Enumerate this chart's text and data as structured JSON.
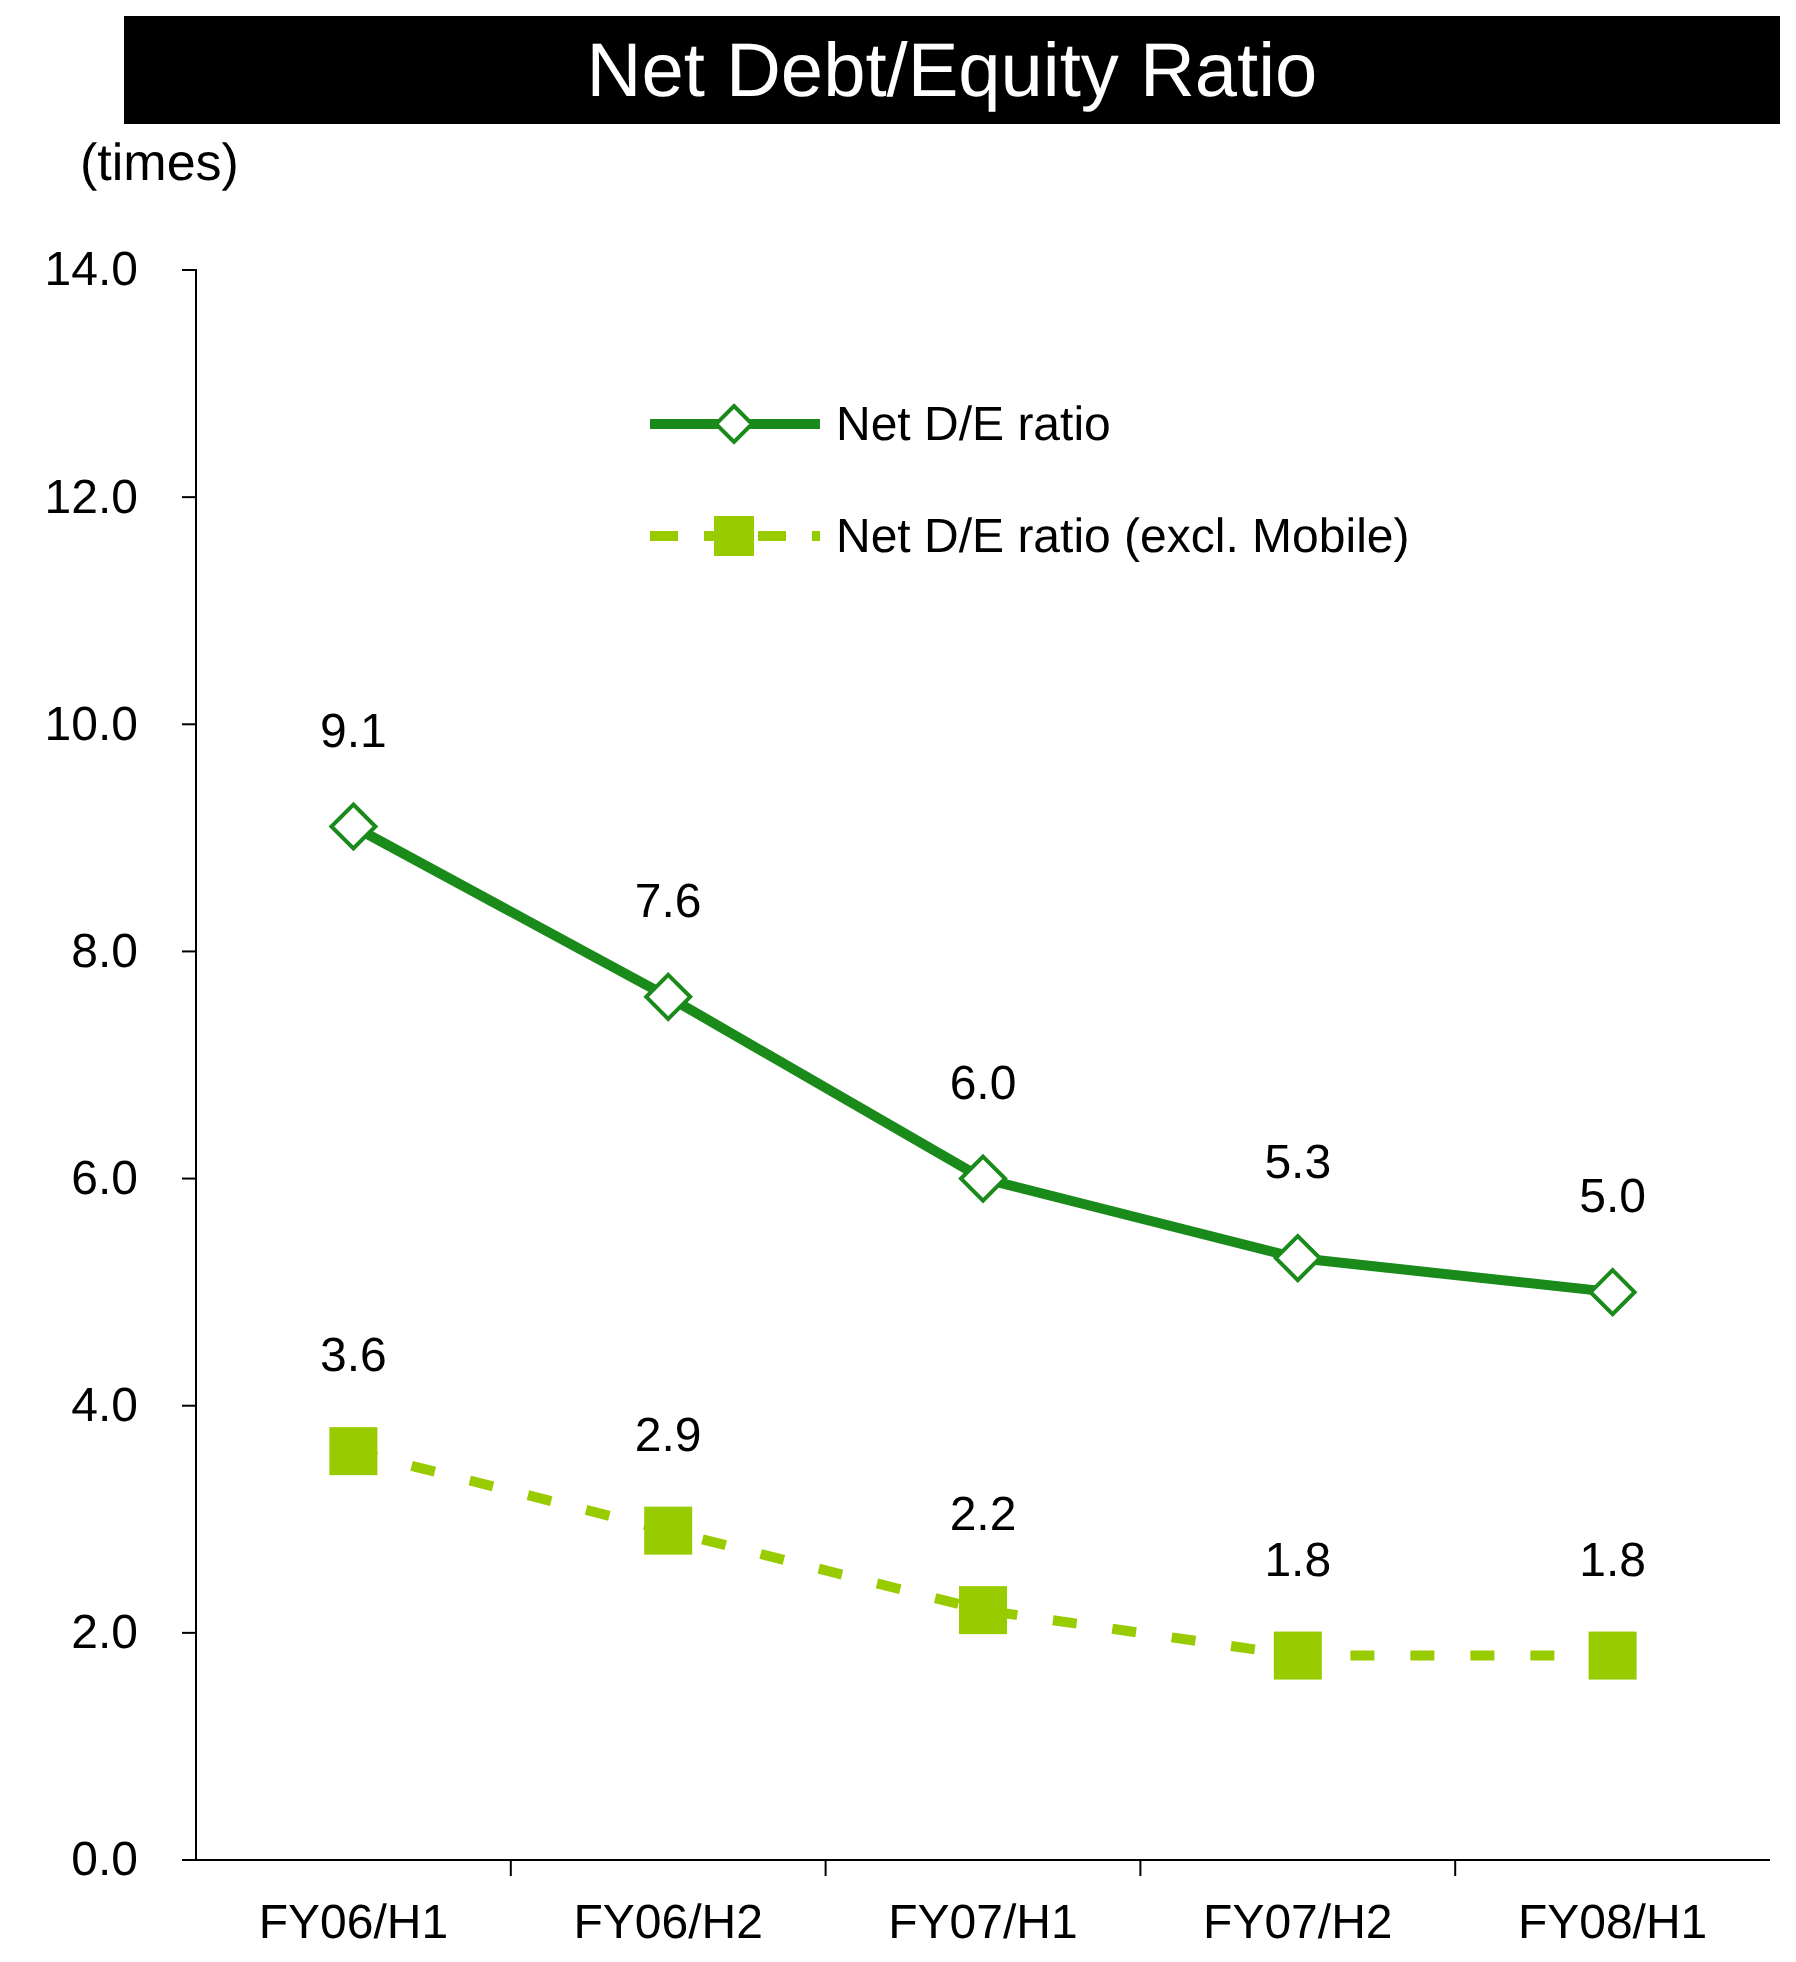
{
  "chart_data": {
    "type": "line",
    "title": "Net Debt/Equity Ratio",
    "ylabel": "(times)",
    "categories": [
      "FY06/H1",
      "FY06/H2",
      "FY07/H1",
      "FY07/H2",
      "FY08/H1"
    ],
    "series": [
      {
        "name": "Net D/E ratio",
        "color": "#1a8a1a",
        "values": [
          9.1,
          7.6,
          6.0,
          5.3,
          5.0
        ],
        "value_labels": [
          "9.1",
          "7.6",
          "6.0",
          "5.3",
          "5.0"
        ],
        "marker": "diamond",
        "line_style": "solid"
      },
      {
        "name": "Net D/E ratio (excl. Mobile)",
        "color": "#99cc00",
        "values": [
          3.6,
          2.9,
          2.2,
          1.8,
          1.8
        ],
        "value_labels": [
          "3.6",
          "2.9",
          "2.2",
          "1.8",
          "1.8"
        ],
        "marker": "square",
        "line_style": "dashed"
      }
    ],
    "ylim": [
      0,
      14
    ],
    "yticks": [
      {
        "value": 0,
        "label": "0.0"
      },
      {
        "value": 2,
        "label": "2.0"
      },
      {
        "value": 4,
        "label": "4.0"
      },
      {
        "value": 6,
        "label": "6.0"
      },
      {
        "value": 8,
        "label": "8.0"
      },
      {
        "value": 10,
        "label": "10.0"
      },
      {
        "value": 12,
        "label": "12.0"
      },
      {
        "value": 14,
        "label": "14.0"
      }
    ],
    "grid": false,
    "legend": "top"
  }
}
